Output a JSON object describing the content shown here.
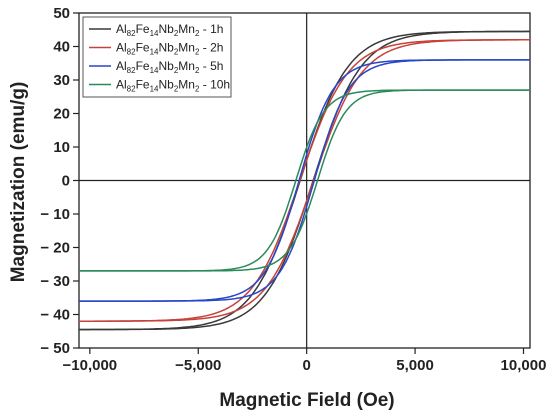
{
  "chart_data": {
    "type": "line",
    "title": "",
    "xlabel": "Magnetic Field (Oe)",
    "ylabel": "Magnetization (emu/g)",
    "xlim": [
      -10500,
      10300
    ],
    "ylim": [
      -50,
      50
    ],
    "x_ticks": [
      -10000,
      -5000,
      0,
      5000,
      10000
    ],
    "x_tick_labels": [
      "−10,000",
      "−5,000",
      "0",
      "5,000",
      "10,000"
    ],
    "y_ticks": [
      -50,
      -40,
      -30,
      -20,
      -10,
      0,
      10,
      20,
      30,
      40,
      50
    ],
    "y_tick_labels": [
      "− 50",
      "− 40",
      "− 30",
      "− 20",
      "− 10",
      "0",
      "10",
      "20",
      "30",
      "40",
      "50"
    ],
    "grid": false,
    "zero_lines": true,
    "legend_position": "top-left",
    "series": [
      {
        "name": "Al82Fe14Nb2Mn2 - 1h",
        "legend": {
          "base": "Al",
          "sub1": "82",
          "mid1": "Fe",
          "sub2": "14",
          "mid2": "Nb",
          "sub3": "2",
          "mid3": "Mn",
          "sub4": "2",
          "suffix": " - 1h"
        },
        "color": "#3a3a3a",
        "ms": 44.5,
        "hc": 300,
        "h0": 2200
      },
      {
        "name": "Al82Fe14Nb2Mn2 - 2h",
        "legend": {
          "base": "Al",
          "sub1": "82",
          "mid1": "Fe",
          "sub2": "14",
          "mid2": "Nb",
          "sub3": "2",
          "mid3": "Mn",
          "sub4": "2",
          "suffix": " - 2h"
        },
        "color": "#c8413a",
        "ms": 42.0,
        "hc": 320,
        "h0": 2200
      },
      {
        "name": "Al82Fe14Nb2Mn2 - 5h",
        "legend": {
          "base": "Al",
          "sub1": "82",
          "mid1": "Fe",
          "sub2": "14",
          "mid2": "Nb",
          "sub3": "2",
          "mid3": "Mn",
          "sub4": "2",
          "suffix": " - 5h"
        },
        "color": "#2a46c8",
        "ms": 36.0,
        "hc": 350,
        "h0": 1600
      },
      {
        "name": "Al82Fe14Nb2Mn2 - 10h",
        "legend": {
          "base": "Al",
          "sub1": "82",
          "mid1": "Fe",
          "sub2": "14",
          "mid2": "Nb",
          "sub3": "2",
          "mid3": "Mn",
          "sub4": "2",
          "suffix": " - 10h"
        },
        "color": "#2a8a5a",
        "ms": 27.0,
        "hc": 500,
        "h0": 1300
      }
    ]
  }
}
